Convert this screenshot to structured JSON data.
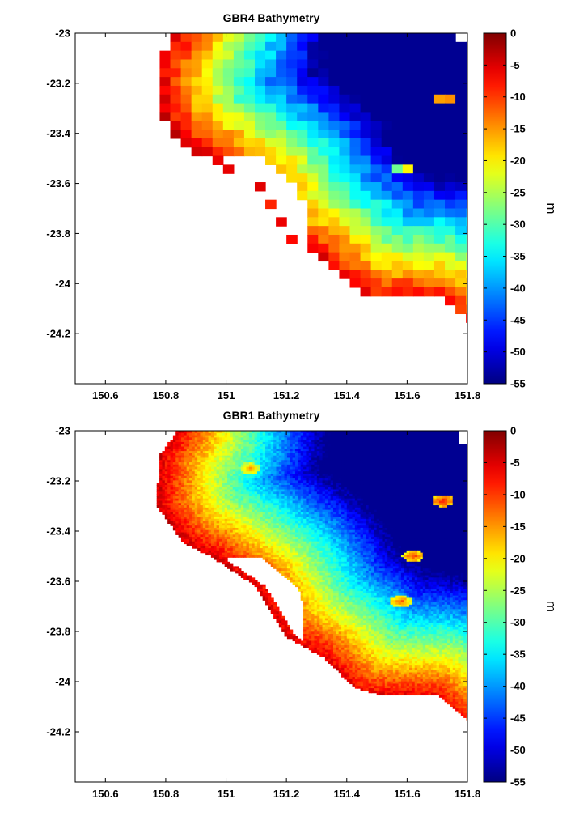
{
  "chart_data": [
    {
      "type": "heatmap",
      "title": "GBR4 Bathymetry",
      "xlabel": "",
      "ylabel": "",
      "xlim": [
        150.5,
        151.8
      ],
      "ylim": [
        -24.4,
        -23
      ],
      "x_ticks": [
        150.6,
        150.8,
        151,
        151.2,
        151.4,
        151.6,
        151.8
      ],
      "x_tick_labels": [
        "150.6",
        "150.8",
        "151",
        "151.2",
        "151.4",
        "151.6",
        "151.8"
      ],
      "y_ticks": [
        -23,
        -23.2,
        -23.4,
        -23.6,
        -23.8,
        -24,
        -24.2
      ],
      "y_tick_labels": [
        "-23",
        "-23.2",
        "-23.4",
        "-23.6",
        "-23.8",
        "-24",
        "-24.2"
      ],
      "colorbar": {
        "label": "m",
        "range": [
          -55,
          0
        ],
        "ticks": [
          0,
          -5,
          -10,
          -15,
          -20,
          -25,
          -30,
          -35,
          -40,
          -45,
          -50,
          -55
        ],
        "tick_labels": [
          "0",
          "-5",
          "-10",
          "-15",
          "-20",
          "-25",
          "-30",
          "-35",
          "-40",
          "-45",
          "-50",
          "-55"
        ],
        "colormap": "jet"
      },
      "grid": false,
      "resolution": "coarse",
      "coast_points": [
        [
          150.84,
          -23.0
        ],
        [
          150.78,
          -23.1
        ],
        [
          150.77,
          -23.3
        ],
        [
          150.86,
          -23.45
        ],
        [
          150.95,
          -23.5
        ],
        [
          151.1,
          -23.62
        ],
        [
          151.2,
          -23.82
        ],
        [
          151.32,
          -23.9
        ],
        [
          151.45,
          -24.05
        ],
        [
          151.7,
          -24.05
        ],
        [
          151.8,
          -24.15
        ]
      ],
      "shallow_features": [
        {
          "lon": 151.72,
          "lat": -23.25,
          "depth": -8
        },
        {
          "lon": 151.6,
          "lat": -23.55,
          "depth": -18
        }
      ],
      "deep_corner": {
        "lon": 151.8,
        "lat": -23.1,
        "depth": -52
      }
    },
    {
      "type": "heatmap",
      "title": "GBR1 Bathymetry",
      "xlabel": "",
      "ylabel": "",
      "xlim": [
        150.5,
        151.8
      ],
      "ylim": [
        -24.4,
        -23
      ],
      "x_ticks": [
        150.6,
        150.8,
        151,
        151.2,
        151.4,
        151.6,
        151.8
      ],
      "x_tick_labels": [
        "150.6",
        "150.8",
        "151",
        "151.2",
        "151.4",
        "151.6",
        "151.8"
      ],
      "y_ticks": [
        -23,
        -23.2,
        -23.4,
        -23.6,
        -23.8,
        -24,
        -24.2
      ],
      "y_tick_labels": [
        "-23",
        "-23.2",
        "-23.4",
        "-23.6",
        "-23.8",
        "-24",
        "-24.2"
      ],
      "colorbar": {
        "label": "m",
        "range": [
          -55,
          0
        ],
        "ticks": [
          0,
          -5,
          -10,
          -15,
          -20,
          -25,
          -30,
          -35,
          -40,
          -45,
          -50,
          -55
        ],
        "tick_labels": [
          "0",
          "-5",
          "-10",
          "-15",
          "-20",
          "-25",
          "-30",
          "-35",
          "-40",
          "-45",
          "-50",
          "-55"
        ],
        "colormap": "jet"
      },
      "grid": false,
      "resolution": "fine",
      "coast_points": [
        [
          150.84,
          -23.0
        ],
        [
          150.78,
          -23.1
        ],
        [
          150.77,
          -23.3
        ],
        [
          150.86,
          -23.45
        ],
        [
          150.95,
          -23.5
        ],
        [
          151.1,
          -23.62
        ],
        [
          151.2,
          -23.82
        ],
        [
          151.32,
          -23.9
        ],
        [
          151.45,
          -24.05
        ],
        [
          151.7,
          -24.05
        ],
        [
          151.8,
          -24.15
        ]
      ],
      "shallow_features": [
        {
          "lon": 151.72,
          "lat": -23.28,
          "depth": -8
        },
        {
          "lon": 151.62,
          "lat": -23.5,
          "depth": -10
        },
        {
          "lon": 151.58,
          "lat": -23.68,
          "depth": -12
        },
        {
          "lon": 151.08,
          "lat": -23.15,
          "depth": -15
        }
      ],
      "deep_corner": {
        "lon": 151.8,
        "lat": -23.1,
        "depth": -52
      }
    }
  ]
}
